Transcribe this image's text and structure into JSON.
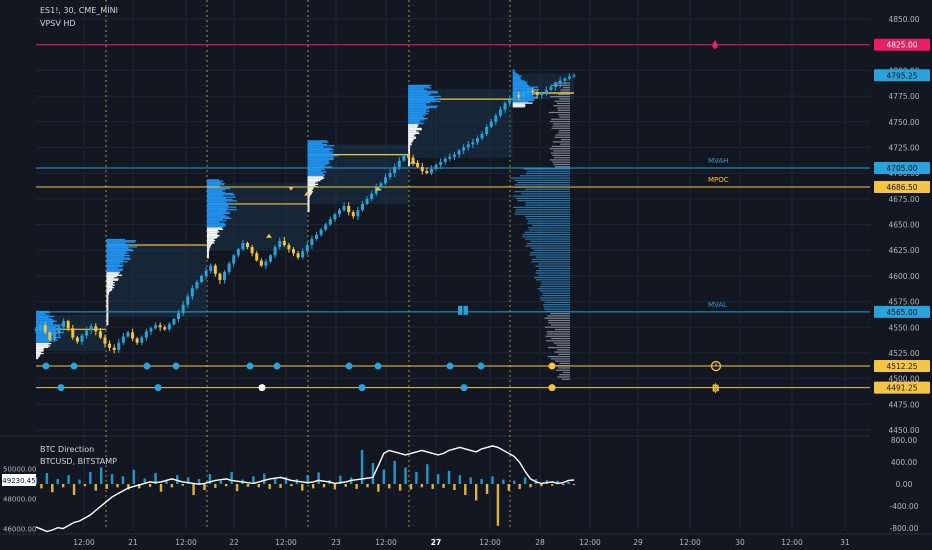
{
  "header": {
    "symbol_line": "ES1!, 30, CME_MINI",
    "indicator": "VPSV HD"
  },
  "lower_header": {
    "title": "BTC Direction",
    "subtitle": "BTCUSD, BITSTAMP"
  },
  "colors": {
    "background": "#131722",
    "grid": "#1e2433",
    "candle_up": "#29a3dc",
    "candle_down": "#f4c542",
    "profile_blue": "#2196f3",
    "profile_white": "#ffffff",
    "profile_grey": "#8a8f9c",
    "vah_line": "#2b9fd6",
    "poc_line": "#f4c542",
    "top_line": "#e91e63",
    "dot_blue": "#29a3dc",
    "dot_yellow": "#f4c542",
    "btc_line": "#ffffff"
  },
  "chart_data": [
    {
      "type": "line",
      "title": "ES1!, 30, CME_MINI",
      "indicator": "VPSV HD",
      "y_ticks": [
        4850,
        4825,
        4800,
        4775,
        4750,
        4725,
        4700,
        4675,
        4650,
        4625,
        4600,
        4575,
        4550,
        4525,
        4500,
        4475,
        4450
      ],
      "ylim": [
        4440,
        4860
      ],
      "x_tick_labels": [
        "12:00",
        "21",
        "12:00",
        "22",
        "12:00",
        "23",
        "12:00",
        "27",
        "12:00",
        "28",
        "12:00",
        "29",
        "12:00",
        "30",
        "12:00",
        "31"
      ],
      "price_labels": [
        {
          "value": 4825.0,
          "text": "4825.00",
          "role": "top_line"
        },
        {
          "value": 4795.25,
          "text": "4795.25",
          "role": "last_price"
        },
        {
          "value": 4705.0,
          "text": "4705.00",
          "role": "vah"
        },
        {
          "value": 4686.5,
          "text": "4686.50",
          "role": "poc"
        },
        {
          "value": 4565.0,
          "text": "4565.00",
          "role": "val"
        },
        {
          "value": 4512.25,
          "text": "4512.25",
          "role": "dots_upper"
        },
        {
          "value": 4491.25,
          "text": "4491.25",
          "role": "dots_lower"
        }
      ],
      "annotations": [
        "MVAH",
        "MPOC",
        "MVAL"
      ],
      "session_boxes": [
        {
          "start": 0,
          "end": 70,
          "low": 4527,
          "high": 4562,
          "poc": 4548
        },
        {
          "start": 70,
          "end": 170,
          "low": 4560,
          "high": 4632,
          "poc": 4630
        },
        {
          "start": 170,
          "end": 270,
          "low": 4625,
          "high": 4690,
          "poc": 4670
        },
        {
          "start": 270,
          "end": 370,
          "low": 4670,
          "high": 4728,
          "poc": 4718
        },
        {
          "start": 370,
          "end": 474,
          "low": 4715,
          "high": 4782,
          "poc": 4772
        },
        {
          "start": 474,
          "end": 535,
          "low": 4772,
          "high": 4797,
          "poc": 4778
        }
      ],
      "close_series": [
        4548,
        4552,
        4545,
        4538,
        4544,
        4550,
        4556,
        4549,
        4540,
        4536,
        4542,
        4547,
        4551,
        4546,
        4540,
        4534,
        4530,
        4528,
        4535,
        4541,
        4545,
        4539,
        4535,
        4540,
        4546,
        4549,
        4552,
        4550,
        4548,
        4553,
        4558,
        4564,
        4572,
        4580,
        4588,
        4594,
        4600,
        4605,
        4610,
        4602,
        4596,
        4604,
        4612,
        4620,
        4626,
        4632,
        4628,
        4622,
        4615,
        4610,
        4614,
        4620,
        4628,
        4634,
        4630,
        4626,
        4622,
        4618,
        4624,
        4630,
        4636,
        4640,
        4645,
        4650,
        4655,
        4660,
        4664,
        4668,
        4662,
        4658,
        4664,
        4670,
        4675,
        4680,
        4686,
        4690,
        4696,
        4700,
        4706,
        4712,
        4718,
        4715,
        4710,
        4706,
        4702,
        4700,
        4704,
        4708,
        4711,
        4714,
        4716,
        4718,
        4722,
        4725,
        4728,
        4730,
        4734,
        4738,
        4745,
        4750,
        4756,
        4762,
        4768,
        4772,
        4776,
        4774,
        4778,
        4780,
        4779,
        4776,
        4778,
        4781,
        4784,
        4787,
        4790,
        4792,
        4794,
        4795.25
      ],
      "volume_profile": {
        "description": "horizontal volume histogram on right side between sessions",
        "range": [
          4500,
          4790
        ]
      }
    },
    {
      "type": "bar",
      "title": "BTC Direction",
      "subtitle": "BTCUSD, BITSTAMP",
      "right_y_ticks": [
        800,
        400,
        0,
        -400,
        -800
      ],
      "right_tick_labels": [
        "800.00",
        "400.00",
        "0.00",
        "-400.00",
        "-800.00"
      ],
      "left_y_ticks": [
        50000,
        48000,
        46000
      ],
      "left_tick_labels": [
        "50000.00",
        "48000.00",
        "46000.00"
      ],
      "last_price_label": "49230.45",
      "btc_price_series": [
        46100,
        45950,
        45800,
        45900,
        46050,
        46000,
        46200,
        46400,
        46500,
        46700,
        46900,
        47200,
        47500,
        47800,
        48100,
        48300,
        48500,
        48700,
        48800,
        48900,
        49000,
        49100,
        49050,
        49100,
        49200,
        49300,
        49200,
        49100,
        49050,
        49000,
        48950,
        49000,
        49100,
        49200,
        49250,
        49300,
        49200,
        49150,
        49100,
        49050,
        49000,
        49100,
        49200,
        49300,
        49350,
        49400,
        49300,
        49200,
        49150,
        49100,
        49050,
        49100,
        49200,
        49150,
        49100,
        49000,
        49050,
        49100,
        49200,
        49250,
        49300,
        49350,
        49400,
        50200,
        51000,
        51200,
        51100,
        51000,
        50900,
        51000,
        51100,
        51200,
        51100,
        51000,
        50900,
        51000,
        51200,
        51300,
        51400,
        51300,
        51200,
        51100,
        51300,
        51400,
        51500,
        51400,
        51200,
        51000,
        50800,
        50400,
        49800,
        49300,
        49100,
        49000,
        49050,
        49100,
        49000,
        49050,
        49200,
        49230.45
      ],
      "direction_values": [
        120,
        -80,
        200,
        -150,
        90,
        -60,
        160,
        -200,
        80,
        -40,
        220,
        -120,
        300,
        -90,
        180,
        -60,
        140,
        -100,
        260,
        -80,
        100,
        -50,
        200,
        -140,
        80,
        -60,
        160,
        -30,
        120,
        -200,
        90,
        -110,
        180,
        -70,
        60,
        -40,
        220,
        -130,
        80,
        -50,
        140,
        -60,
        190,
        -90,
        110,
        -70,
        130,
        -40,
        90,
        -120,
        160,
        -80,
        210,
        -60,
        70,
        -100,
        150,
        -50,
        120,
        -90,
        620,
        -60,
        380,
        -140,
        260,
        -80,
        420,
        -120,
        300,
        -100,
        220,
        -60,
        360,
        -90,
        180,
        -70,
        240,
        -110,
        160,
        -200,
        120,
        -300,
        90,
        -180,
        140,
        -760,
        80,
        -120,
        60,
        -90,
        120,
        -60,
        90,
        -40,
        70,
        -30,
        60,
        -20,
        40,
        -10
      ]
    }
  ]
}
